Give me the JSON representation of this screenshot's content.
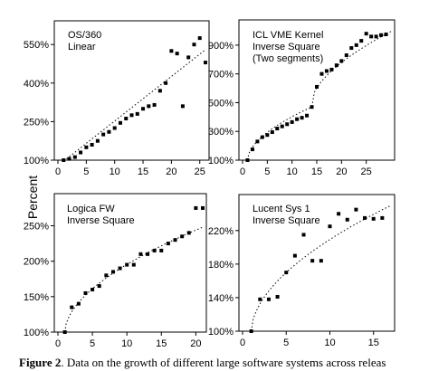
{
  "figure": {
    "ylabel": "Percent",
    "caption_label": "Figure 2",
    "caption_text": ". Data on the growth of different large software systems across releas"
  },
  "chart_data": [
    {
      "type": "scatter",
      "title": "OS/360",
      "subtitle": "Linear",
      "xlabel": "",
      "ylabel": "Percent",
      "xlim": [
        0,
        26
      ],
      "ylim": [
        100,
        600
      ],
      "xticks": [
        0,
        5,
        10,
        15,
        20,
        25
      ],
      "yticks": [
        100,
        250,
        400,
        550
      ],
      "ytick_labels": [
        "100%",
        "250%",
        "400%",
        "550%"
      ],
      "grid": false,
      "legend": "none",
      "x": [
        1,
        2,
        3,
        4,
        5,
        6,
        7,
        8,
        9,
        10,
        11,
        12,
        13,
        14,
        15,
        16,
        17,
        18,
        19,
        20,
        21,
        22,
        23,
        24,
        25,
        26
      ],
      "y": [
        100,
        105,
        112,
        130,
        150,
        160,
        175,
        200,
        210,
        225,
        245,
        262,
        275,
        280,
        300,
        310,
        315,
        370,
        400,
        525,
        515,
        310,
        500,
        550,
        575,
        480
      ],
      "fit": {
        "form": "linear",
        "y_at_xmin": 96,
        "y_at_xmax": 530
      }
    },
    {
      "type": "scatter",
      "title": "ICL VME Kernel",
      "subtitle": "Inverse Square",
      "note": "(Two segments)",
      "xlabel": "",
      "ylabel": "Percent",
      "xlim": [
        0,
        30
      ],
      "ylim": [
        100,
        1000
      ],
      "xticks": [
        0,
        5,
        10,
        15,
        20,
        25
      ],
      "yticks": [
        100,
        300,
        500,
        700,
        900
      ],
      "ytick_labels": [
        "100%",
        "300%",
        "500%",
        "700%",
        "900%"
      ],
      "grid": false,
      "legend": "none",
      "x": [
        1,
        2,
        3,
        4,
        5,
        6,
        7,
        8,
        9,
        10,
        11,
        12,
        13,
        14,
        15,
        16,
        17,
        18,
        19,
        20,
        21,
        22,
        23,
        24,
        25,
        26,
        27,
        28,
        29
      ],
      "y": [
        100,
        175,
        230,
        260,
        275,
        295,
        320,
        335,
        350,
        365,
        385,
        395,
        410,
        470,
        610,
        700,
        720,
        730,
        760,
        790,
        830,
        880,
        900,
        930,
        980,
        960,
        960,
        970,
        975
      ],
      "segment_break_x": 14
    },
    {
      "type": "scatter",
      "title": "Logica FW",
      "subtitle": "Inverse Square",
      "xlabel": "",
      "ylabel": "Percent",
      "xlim": [
        0,
        21
      ],
      "ylim": [
        100,
        280
      ],
      "xticks": [
        0,
        5,
        10,
        15,
        20
      ],
      "yticks": [
        100,
        150,
        200,
        250
      ],
      "ytick_labels": [
        "100%",
        "150%",
        "200%",
        "250%"
      ],
      "grid": false,
      "legend": "none",
      "x": [
        1,
        2,
        3,
        4,
        5,
        6,
        7,
        8,
        9,
        10,
        11,
        12,
        13,
        14,
        15,
        16,
        17,
        18,
        19,
        20,
        21
      ],
      "y": [
        100,
        135,
        140,
        155,
        160,
        165,
        180,
        185,
        190,
        195,
        195,
        210,
        210,
        215,
        215,
        225,
        230,
        235,
        240,
        275,
        275
      ]
    },
    {
      "type": "scatter",
      "title": "Lucent Sys 1",
      "subtitle": "Inverse Square",
      "xlabel": "",
      "ylabel": "Percent",
      "xlim": [
        0,
        17
      ],
      "ylim": [
        100,
        250
      ],
      "xticks": [
        0,
        5,
        10,
        15
      ],
      "yticks": [
        100,
        140,
        180,
        220
      ],
      "ytick_labels": [
        "100%",
        "140%",
        "180%",
        "220%"
      ],
      "grid": false,
      "legend": "none",
      "x": [
        1,
        2,
        3,
        4,
        5,
        6,
        7,
        8,
        9,
        10,
        11,
        12,
        13,
        14,
        15,
        16
      ],
      "y": [
        100,
        138,
        138,
        141,
        170,
        190,
        215,
        184,
        184,
        225,
        240,
        233,
        245,
        235,
        234,
        235
      ]
    }
  ]
}
